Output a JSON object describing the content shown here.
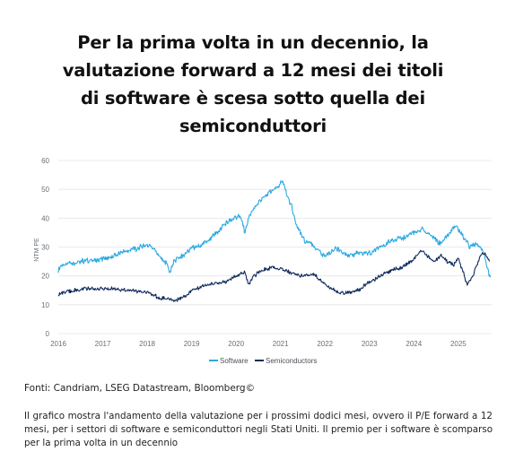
{
  "title": "Per la prima volta in un decennio, la valutazione forward a 12 mesi dei titoli di software è scesa sotto quella dei semiconduttori",
  "source": "Fonti: Candriam, LSEG Datastream, Bloomberg©",
  "caption": "Il grafico mostra l'andamento della valutazione per i prossimi dodici mesi, ovvero il P/E forward a 12 mesi, per i settori di software e semiconduttori negli Stati Uniti. Il premio per i software è scomparso per la prima volta in un decennio",
  "chart_data": {
    "type": "line",
    "ylabel": "NTM PE",
    "ylim": [
      0,
      60
    ],
    "yticks": [
      0,
      10,
      20,
      30,
      40,
      50,
      60
    ],
    "xlim": [
      2016.0,
      2025.75
    ],
    "xticks": [
      "2016",
      "2017",
      "2018",
      "2019",
      "2020",
      "2021",
      "2022",
      "2023",
      "2024",
      "2025"
    ],
    "grid": "horizontal",
    "legend_position": "bottom",
    "colors": {
      "Software": "#29a9e1",
      "Semiconductors": "#102a5c"
    },
    "series": [
      {
        "name": "Software",
        "points": [
          [
            2016.0,
            22
          ],
          [
            2016.1,
            24
          ],
          [
            2016.3,
            24.5
          ],
          [
            2016.5,
            25
          ],
          [
            2016.75,
            25.5
          ],
          [
            2017.0,
            26
          ],
          [
            2017.25,
            27
          ],
          [
            2017.5,
            28.5
          ],
          [
            2017.75,
            29.5
          ],
          [
            2018.0,
            31
          ],
          [
            2018.2,
            28
          ],
          [
            2018.45,
            24
          ],
          [
            2018.5,
            21
          ],
          [
            2018.6,
            25
          ],
          [
            2018.8,
            27
          ],
          [
            2019.0,
            29.5
          ],
          [
            2019.25,
            31
          ],
          [
            2019.5,
            34
          ],
          [
            2019.75,
            38
          ],
          [
            2019.95,
            40
          ],
          [
            2020.1,
            41
          ],
          [
            2020.2,
            35
          ],
          [
            2020.3,
            41
          ],
          [
            2020.5,
            45
          ],
          [
            2020.75,
            49
          ],
          [
            2020.95,
            51
          ],
          [
            2021.05,
            53
          ],
          [
            2021.15,
            48
          ],
          [
            2021.25,
            44
          ],
          [
            2021.35,
            38
          ],
          [
            2021.5,
            33
          ],
          [
            2021.75,
            30
          ],
          [
            2022.0,
            27
          ],
          [
            2022.25,
            29.5
          ],
          [
            2022.5,
            27
          ],
          [
            2022.75,
            28
          ],
          [
            2023.0,
            28
          ],
          [
            2023.25,
            30
          ],
          [
            2023.5,
            32.5
          ],
          [
            2023.75,
            33
          ],
          [
            2024.0,
            35
          ],
          [
            2024.2,
            36
          ],
          [
            2024.4,
            34
          ],
          [
            2024.6,
            31
          ],
          [
            2024.8,
            35
          ],
          [
            2024.95,
            37
          ],
          [
            2025.1,
            34
          ],
          [
            2025.25,
            30
          ],
          [
            2025.4,
            31
          ],
          [
            2025.55,
            29
          ],
          [
            2025.65,
            23
          ],
          [
            2025.72,
            19.5
          ]
        ]
      },
      {
        "name": "Semiconductors",
        "points": [
          [
            2016.0,
            13.5
          ],
          [
            2016.15,
            14.5
          ],
          [
            2016.4,
            15
          ],
          [
            2016.6,
            15.5
          ],
          [
            2016.8,
            15.5
          ],
          [
            2017.0,
            15.5
          ],
          [
            2017.3,
            15.5
          ],
          [
            2017.6,
            15
          ],
          [
            2017.9,
            14.5
          ],
          [
            2018.0,
            14.5
          ],
          [
            2018.25,
            12.5
          ],
          [
            2018.5,
            12
          ],
          [
            2018.65,
            11.5
          ],
          [
            2018.85,
            13
          ],
          [
            2019.0,
            15
          ],
          [
            2019.25,
            16.5
          ],
          [
            2019.5,
            17.5
          ],
          [
            2019.75,
            18
          ],
          [
            2020.0,
            20
          ],
          [
            2020.2,
            21.5
          ],
          [
            2020.28,
            17
          ],
          [
            2020.4,
            20
          ],
          [
            2020.6,
            22
          ],
          [
            2020.8,
            23
          ],
          [
            2021.0,
            22.5
          ],
          [
            2021.25,
            21
          ],
          [
            2021.5,
            20
          ],
          [
            2021.75,
            20.5
          ],
          [
            2022.0,
            17
          ],
          [
            2022.25,
            14.5
          ],
          [
            2022.5,
            14
          ],
          [
            2022.75,
            15
          ],
          [
            2023.0,
            18
          ],
          [
            2023.25,
            20
          ],
          [
            2023.5,
            22
          ],
          [
            2023.75,
            23
          ],
          [
            2024.0,
            26
          ],
          [
            2024.15,
            29
          ],
          [
            2024.3,
            27
          ],
          [
            2024.45,
            25
          ],
          [
            2024.6,
            27
          ],
          [
            2024.75,
            25
          ],
          [
            2024.9,
            24
          ],
          [
            2025.0,
            26
          ],
          [
            2025.12,
            21
          ],
          [
            2025.2,
            16.5
          ],
          [
            2025.35,
            21
          ],
          [
            2025.5,
            27
          ],
          [
            2025.6,
            28
          ],
          [
            2025.7,
            25
          ]
        ]
      }
    ]
  }
}
